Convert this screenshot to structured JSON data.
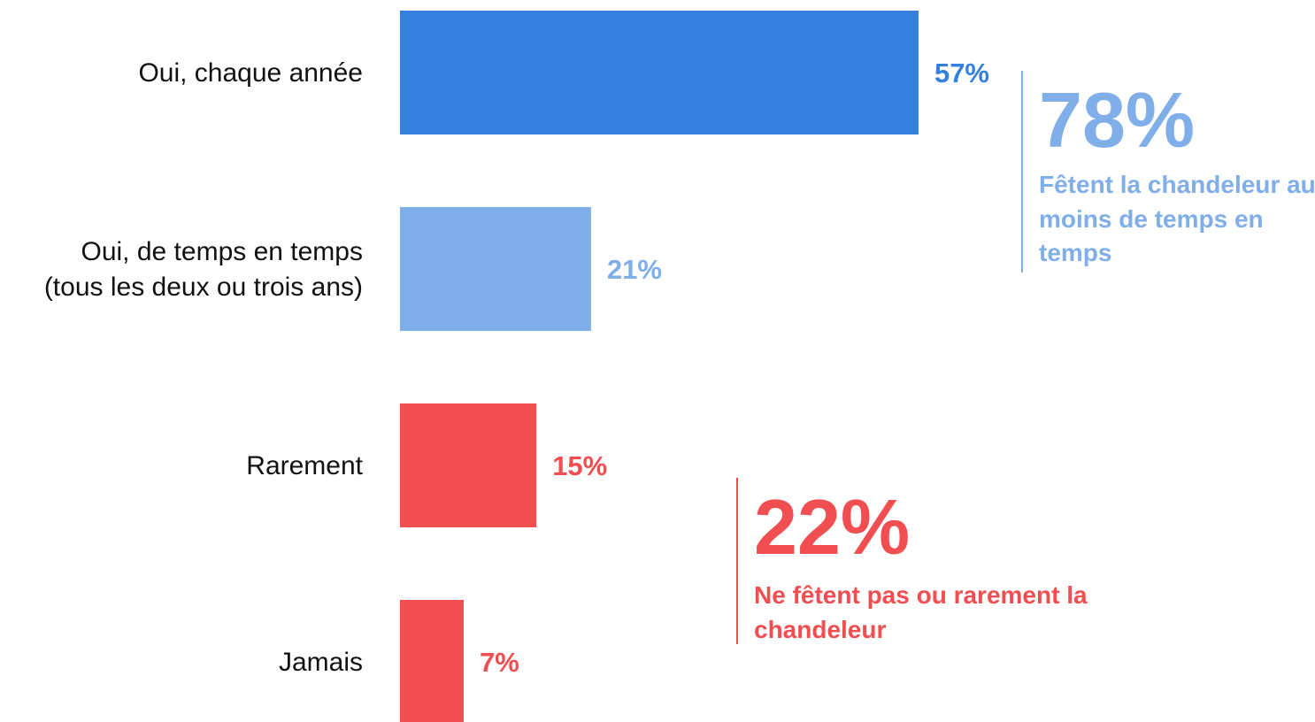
{
  "chart_data": {
    "type": "barh",
    "categories": [
      "Oui, chaque année",
      "Oui, de temps en temps\n(tous les deux ou trois ans)",
      "Rarement",
      "Jamais"
    ],
    "values": [
      57,
      21,
      15,
      7
    ],
    "value_labels": [
      "57%",
      "21%",
      "15%",
      "7%"
    ],
    "colors": [
      "#3580dc",
      "#7faee8",
      "#f04e50",
      "#f04e50"
    ],
    "annotations": [
      {
        "value_label": "78%",
        "text": "Fêtent la chandeleur au moins de temps en temps",
        "color": "#7faee8"
      },
      {
        "value_label": "22%",
        "text": "Ne fêtent pas ou rarement la chandeleur",
        "color": "#f04e50"
      }
    ]
  }
}
